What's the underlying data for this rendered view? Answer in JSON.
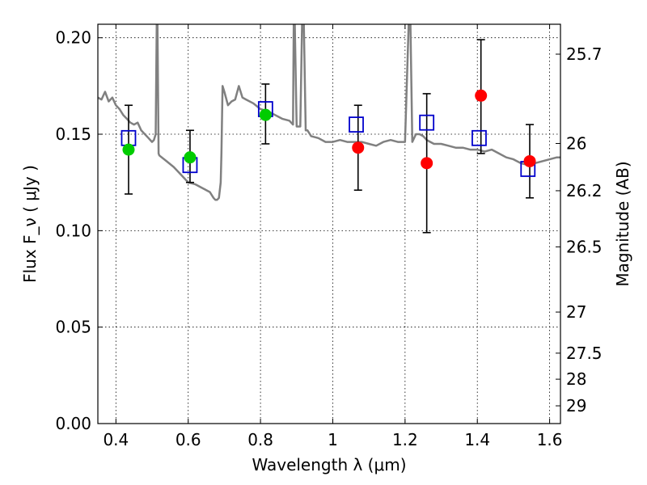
{
  "chart_data": {
    "type": "scatter",
    "xlabel": "Wavelength  λ (μm)",
    "ylabel": "Flux  F_ν  ( μJy )",
    "ylabel_right": "Magnitude (AB)",
    "xlim": [
      0.35,
      1.63
    ],
    "ylim": [
      0.0,
      0.207
    ],
    "grid": true,
    "x_ticks": [
      0.4,
      0.6,
      0.8,
      1.0,
      1.2,
      1.4,
      1.6
    ],
    "x_tick_labels": [
      "0.4",
      "0.6",
      "0.8",
      "1",
      "1.2",
      "1.4",
      "1.6"
    ],
    "y_ticks": [
      0.0,
      0.05,
      0.1,
      0.15,
      0.2
    ],
    "y_tick_labels": [
      "0.00",
      "0.05",
      "0.10",
      "0.15",
      "0.20"
    ],
    "right_ticks": [
      {
        "label": "25.7",
        "flux": 0.1915
      },
      {
        "label": "26",
        "flux": 0.1452
      },
      {
        "label": "26.2",
        "flux": 0.1207
      },
      {
        "label": "26.5",
        "flux": 0.0916
      },
      {
        "label": "27",
        "flux": 0.0578
      },
      {
        "label": "27.5",
        "flux": 0.0365
      },
      {
        "label": "28",
        "flux": 0.023
      },
      {
        "label": "29",
        "flux": 0.0092
      }
    ],
    "model_spectrum": {
      "color": "#808080",
      "x": [
        0.35,
        0.36,
        0.37,
        0.38,
        0.39,
        0.4,
        0.41,
        0.42,
        0.43,
        0.44,
        0.45,
        0.46,
        0.47,
        0.48,
        0.49,
        0.5,
        0.505,
        0.51,
        0.513,
        0.515,
        0.518,
        0.52,
        0.54,
        0.56,
        0.58,
        0.6,
        0.62,
        0.64,
        0.66,
        0.67,
        0.675,
        0.68,
        0.685,
        0.69,
        0.692,
        0.695,
        0.7,
        0.71,
        0.72,
        0.73,
        0.74,
        0.75,
        0.76,
        0.78,
        0.8,
        0.82,
        0.84,
        0.86,
        0.88,
        0.89,
        0.892,
        0.895,
        0.9,
        0.91,
        0.915,
        0.92,
        0.925,
        0.93,
        0.94,
        0.96,
        0.98,
        1.0,
        1.02,
        1.04,
        1.06,
        1.08,
        1.1,
        1.12,
        1.14,
        1.16,
        1.18,
        1.19,
        1.2,
        1.21,
        1.215,
        1.22,
        1.23,
        1.24,
        1.25,
        1.26,
        1.27,
        1.28,
        1.3,
        1.32,
        1.34,
        1.36,
        1.38,
        1.4,
        1.42,
        1.44,
        1.46,
        1.48,
        1.5,
        1.52,
        1.54,
        1.56,
        1.58,
        1.6,
        1.62,
        1.63
      ],
      "y": [
        0.169,
        0.168,
        0.172,
        0.167,
        0.169,
        0.165,
        0.163,
        0.16,
        0.158,
        0.156,
        0.155,
        0.156,
        0.152,
        0.15,
        0.148,
        0.146,
        0.147,
        0.15,
        0.207,
        0.207,
        0.14,
        0.139,
        0.136,
        0.133,
        0.129,
        0.125,
        0.124,
        0.122,
        0.12,
        0.117,
        0.116,
        0.116,
        0.117,
        0.125,
        0.14,
        0.175,
        0.172,
        0.165,
        0.167,
        0.168,
        0.175,
        0.169,
        0.168,
        0.166,
        0.163,
        0.162,
        0.16,
        0.158,
        0.157,
        0.155,
        0.207,
        0.207,
        0.154,
        0.154,
        0.207,
        0.207,
        0.152,
        0.152,
        0.149,
        0.148,
        0.146,
        0.146,
        0.147,
        0.146,
        0.146,
        0.146,
        0.145,
        0.144,
        0.146,
        0.147,
        0.146,
        0.146,
        0.146,
        0.207,
        0.207,
        0.146,
        0.15,
        0.15,
        0.149,
        0.147,
        0.146,
        0.145,
        0.145,
        0.144,
        0.143,
        0.143,
        0.142,
        0.142,
        0.141,
        0.142,
        0.14,
        0.138,
        0.137,
        0.135,
        0.134,
        0.135,
        0.136,
        0.137,
        0.138,
        0.138
      ]
    },
    "series": [
      {
        "name": "",
        "marker": "open-square",
        "color": "#0000cc",
        "x": [
          0.435,
          0.605,
          0.814,
          1.065,
          1.26,
          1.405,
          1.54
        ],
        "y": [
          0.148,
          0.134,
          0.163,
          0.155,
          0.156,
          0.148,
          0.132
        ]
      },
      {
        "name": "",
        "marker": "filled-circle",
        "color": "#00cc00",
        "x": [
          0.435,
          0.605,
          0.814
        ],
        "y": [
          0.142,
          0.138,
          0.16
        ],
        "yerr_low": [
          0.023,
          0.013,
          0.015
        ],
        "yerr_high": [
          0.023,
          0.014,
          0.016
        ]
      },
      {
        "name": "",
        "marker": "filled-circle",
        "color": "#ff0000",
        "x": [
          1.07,
          1.26,
          1.41,
          1.545
        ],
        "y": [
          0.143,
          0.135,
          0.17,
          0.136
        ],
        "yerr_low": [
          0.022,
          0.036,
          0.03,
          0.019
        ],
        "yerr_high": [
          0.022,
          0.036,
          0.029,
          0.019
        ]
      }
    ]
  }
}
